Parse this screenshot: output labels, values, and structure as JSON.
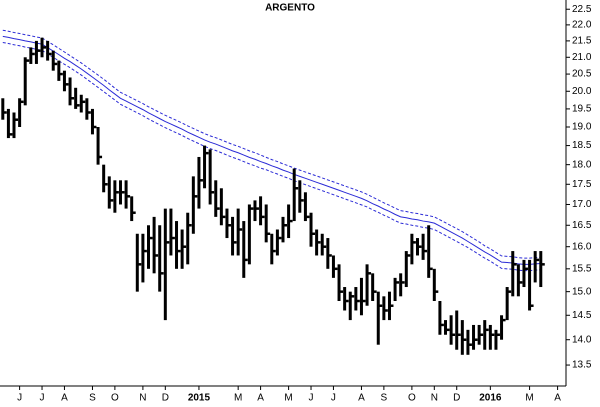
{
  "chart_data": {
    "type": "ohlc",
    "title": "ARGENTO",
    "log_scale": true,
    "ylim": [
      13.1,
      22.8
    ],
    "yticks": [
      13.5,
      {
        "value": 14,
        "label": "14.0"
      },
      14.5,
      {
        "value": 15,
        "label": "15.0"
      },
      15.5,
      {
        "value": 16,
        "label": "16.0"
      },
      16.5,
      {
        "value": 17,
        "label": "17.0"
      },
      17.5,
      {
        "value": 18,
        "label": "18.0"
      },
      18.5,
      {
        "value": 19,
        "label": "19.0"
      },
      19.5,
      {
        "value": 20,
        "label": "20.0"
      },
      20.5,
      {
        "value": 21,
        "label": "21.0"
      },
      21.5,
      {
        "value": 22,
        "label": "22.0"
      },
      22.5
    ],
    "color": "#000000",
    "categories": [
      null,
      null,
      null,
      "J",
      null,
      null,
      null,
      "J",
      null,
      null,
      null,
      "A",
      null,
      null,
      null,
      null,
      "S",
      null,
      null,
      null,
      "O",
      null,
      null,
      null,
      null,
      "N",
      null,
      null,
      null,
      "D",
      null,
      null,
      null,
      null,
      null,
      "2015",
      null,
      null,
      null,
      null,
      null,
      null,
      "M",
      null,
      null,
      null,
      "A",
      null,
      null,
      null,
      null,
      "M",
      null,
      null,
      null,
      "J",
      null,
      null,
      null,
      "J",
      null,
      null,
      null,
      null,
      "A",
      null,
      null,
      null,
      "S",
      null,
      null,
      null,
      null,
      "O",
      null,
      null,
      null,
      "N",
      null,
      null,
      null,
      "D",
      null,
      null,
      null,
      null,
      null,
      "2016",
      null,
      null,
      null,
      null,
      null,
      null,
      "M",
      null,
      null,
      null,
      null,
      "A",
      null
    ],
    "high": [
      19.8,
      19.5,
      19.4,
      19.8,
      21.0,
      21.3,
      21.5,
      21.6,
      21.5,
      21.2,
      20.9,
      20.6,
      20.4,
      20.1,
      19.9,
      19.8,
      19.5,
      19.0,
      18.0,
      17.7,
      17.6,
      17.6,
      17.6,
      17.2,
      16.3,
      16.3,
      16.5,
      16.7,
      16.5,
      16.9,
      16.9,
      16.6,
      16.4,
      16.8,
      17.7,
      18.2,
      18.5,
      18.4,
      17.6,
      17.4,
      16.9,
      16.7,
      16.9,
      16.6,
      17.0,
      17.1,
      17.2,
      17.0,
      16.3,
      16.4,
      16.7,
      17.0,
      17.9,
      17.6,
      17.3,
      16.8,
      16.4,
      16.3,
      16.2,
      15.8,
      15.6,
      15.1,
      15.0,
      15.1,
      15.3,
      15.6,
      15.4,
      15.0,
      14.9,
      15.0,
      15.3,
      15.4,
      15.9,
      16.3,
      16.2,
      16.3,
      16.5,
      15.5,
      14.8,
      14.4,
      14.5,
      14.6,
      14.4,
      14.2,
      14.3,
      14.3,
      14.4,
      14.3,
      14.2,
      14.5,
      15.1,
      15.9,
      15.6,
      15.7,
      15.7,
      15.9,
      15.9,
      null,
      null,
      null,
      null
    ],
    "low": [
      19.2,
      18.7,
      18.7,
      19.0,
      19.6,
      20.8,
      20.8,
      21.0,
      20.9,
      20.6,
      20.3,
      20.0,
      19.6,
      19.5,
      19.4,
      19.2,
      18.8,
      18.0,
      17.3,
      16.9,
      16.8,
      17.0,
      16.9,
      16.6,
      15.0,
      15.2,
      15.5,
      15.4,
      15.0,
      14.4,
      15.8,
      15.5,
      15.5,
      15.6,
      16.3,
      16.9,
      17.4,
      17.0,
      16.7,
      16.5,
      16.2,
      15.8,
      15.8,
      15.3,
      15.6,
      16.6,
      16.5,
      16.1,
      15.6,
      15.8,
      16.1,
      16.2,
      16.6,
      16.8,
      16.6,
      16.0,
      15.8,
      15.8,
      15.5,
      15.3,
      14.8,
      14.6,
      14.4,
      14.6,
      14.5,
      14.7,
      14.8,
      13.9,
      14.4,
      14.4,
      14.8,
      14.9,
      15.1,
      15.6,
      15.8,
      15.7,
      15.3,
      14.8,
      14.1,
      14.1,
      13.9,
      13.8,
      13.7,
      13.7,
      13.8,
      13.9,
      13.8,
      13.8,
      13.8,
      14.0,
      14.4,
      14.9,
      14.9,
      15.1,
      14.6,
      15.2,
      15.1,
      null,
      null,
      null,
      null
    ],
    "close": [
      19.4,
      18.8,
      19.2,
      19.7,
      20.9,
      21.1,
      21.2,
      21.3,
      21.1,
      20.8,
      20.5,
      20.2,
      19.8,
      19.6,
      19.7,
      19.4,
      19.0,
      18.2,
      17.5,
      17.1,
      17.3,
      17.3,
      17.2,
      16.8,
      15.6,
      15.9,
      16.2,
      15.8,
      15.4,
      16.1,
      16.2,
      15.9,
      16.0,
      16.5,
      17.2,
      17.6,
      18.3,
      17.3,
      16.9,
      16.7,
      16.5,
      16.1,
      16.4,
      15.7,
      16.9,
      16.9,
      16.7,
      16.3,
      15.9,
      16.2,
      16.5,
      16.6,
      17.4,
      17.1,
      16.7,
      16.3,
      16.1,
      16.0,
      15.8,
      15.5,
      15.0,
      14.8,
      14.9,
      14.8,
      14.8,
      15.4,
      15.0,
      14.7,
      14.6,
      14.7,
      15.2,
      15.2,
      15.8,
      16.1,
      16.0,
      15.9,
      15.5,
      15.0,
      14.3,
      14.2,
      14.1,
      14.1,
      14.0,
      13.9,
      14.0,
      14.1,
      14.2,
      14.1,
      14.1,
      14.4,
      15.0,
      15.6,
      15.2,
      15.5,
      14.7,
      15.7,
      15.6,
      null,
      null,
      null,
      null
    ],
    "lines": [
      {
        "color": "#2b2bd6",
        "dash": false,
        "values": [
          21.64,
          21.61,
          21.57,
          21.54,
          21.5,
          21.47,
          21.43,
          21.4,
          21.29,
          21.19,
          21.08,
          20.97,
          20.87,
          20.76,
          20.65,
          20.53,
          20.41,
          20.29,
          20.17,
          20.04,
          19.92,
          19.8,
          19.72,
          19.64,
          19.56,
          19.48,
          19.39,
          19.31,
          19.23,
          19.15,
          19.08,
          19.01,
          18.94,
          18.86,
          18.79,
          18.72,
          18.65,
          18.59,
          18.54,
          18.48,
          18.42,
          18.36,
          18.31,
          18.25,
          18.19,
          18.14,
          18.08,
          18.03,
          17.97,
          17.92,
          17.86,
          17.81,
          17.75,
          17.7,
          17.65,
          17.6,
          17.55,
          17.5,
          17.45,
          17.4,
          17.35,
          17.3,
          17.25,
          17.2,
          17.15,
          17.09,
          17.02,
          16.96,
          16.89,
          16.83,
          16.76,
          16.7,
          16.68,
          16.65,
          16.63,
          16.6,
          16.58,
          16.55,
          16.48,
          16.41,
          16.34,
          16.27,
          16.2,
          16.12,
          16.04,
          15.96,
          15.88,
          15.81,
          15.73,
          15.65,
          15.64,
          15.63,
          15.61,
          15.6,
          15.6,
          15.61,
          15.62,
          null,
          null,
          null,
          null
        ]
      },
      {
        "color": "#2b2bd6",
        "dash": true,
        "values": [
          21.83,
          21.8,
          21.76,
          21.73,
          21.69,
          21.66,
          21.62,
          21.59,
          21.48,
          21.38,
          21.27,
          21.16,
          21.05,
          20.94,
          20.83,
          20.71,
          20.59,
          20.47,
          20.35,
          20.22,
          20.09,
          19.97,
          19.89,
          19.81,
          19.73,
          19.65,
          19.56,
          19.48,
          19.4,
          19.32,
          19.25,
          19.18,
          19.11,
          19.03,
          18.96,
          18.89,
          18.82,
          18.76,
          18.71,
          18.65,
          18.59,
          18.53,
          18.48,
          18.42,
          18.36,
          18.31,
          18.25,
          18.19,
          18.13,
          18.08,
          18.02,
          17.97,
          17.91,
          17.86,
          17.81,
          17.76,
          17.71,
          17.66,
          17.61,
          17.56,
          17.51,
          17.46,
          17.41,
          17.36,
          17.31,
          17.25,
          17.18,
          17.11,
          17.04,
          16.98,
          16.91,
          16.85,
          16.83,
          16.8,
          16.78,
          16.75,
          16.73,
          16.7,
          16.63,
          16.56,
          16.49,
          16.42,
          16.35,
          16.27,
          16.19,
          16.11,
          16.02,
          15.95,
          15.87,
          15.79,
          15.78,
          15.77,
          15.75,
          15.74,
          15.74,
          15.75,
          15.76,
          null,
          null,
          null,
          null
        ]
      },
      {
        "color": "#2b2bd6",
        "dash": true,
        "values": [
          21.45,
          21.42,
          21.38,
          21.35,
          21.31,
          21.28,
          21.24,
          21.21,
          21.1,
          21.0,
          20.89,
          20.79,
          20.69,
          20.58,
          20.47,
          20.35,
          20.23,
          20.11,
          19.99,
          19.87,
          19.75,
          19.63,
          19.55,
          19.47,
          19.39,
          19.31,
          19.22,
          19.14,
          19.06,
          18.98,
          18.91,
          18.84,
          18.77,
          18.69,
          18.62,
          18.55,
          18.48,
          18.42,
          18.37,
          18.31,
          18.25,
          18.19,
          18.14,
          18.08,
          18.02,
          17.97,
          17.91,
          17.87,
          17.81,
          17.76,
          17.7,
          17.65,
          17.59,
          17.54,
          17.49,
          17.44,
          17.39,
          17.34,
          17.29,
          17.24,
          17.19,
          17.14,
          17.09,
          17.04,
          16.99,
          16.94,
          16.87,
          16.81,
          16.74,
          16.68,
          16.61,
          16.55,
          16.53,
          16.5,
          16.48,
          16.45,
          16.43,
          16.4,
          16.33,
          16.26,
          16.19,
          16.12,
          16.05,
          15.98,
          15.9,
          15.82,
          15.74,
          15.67,
          15.59,
          15.51,
          15.5,
          15.49,
          15.47,
          15.46,
          15.46,
          15.47,
          15.48,
          null,
          null,
          null,
          null
        ]
      }
    ]
  }
}
